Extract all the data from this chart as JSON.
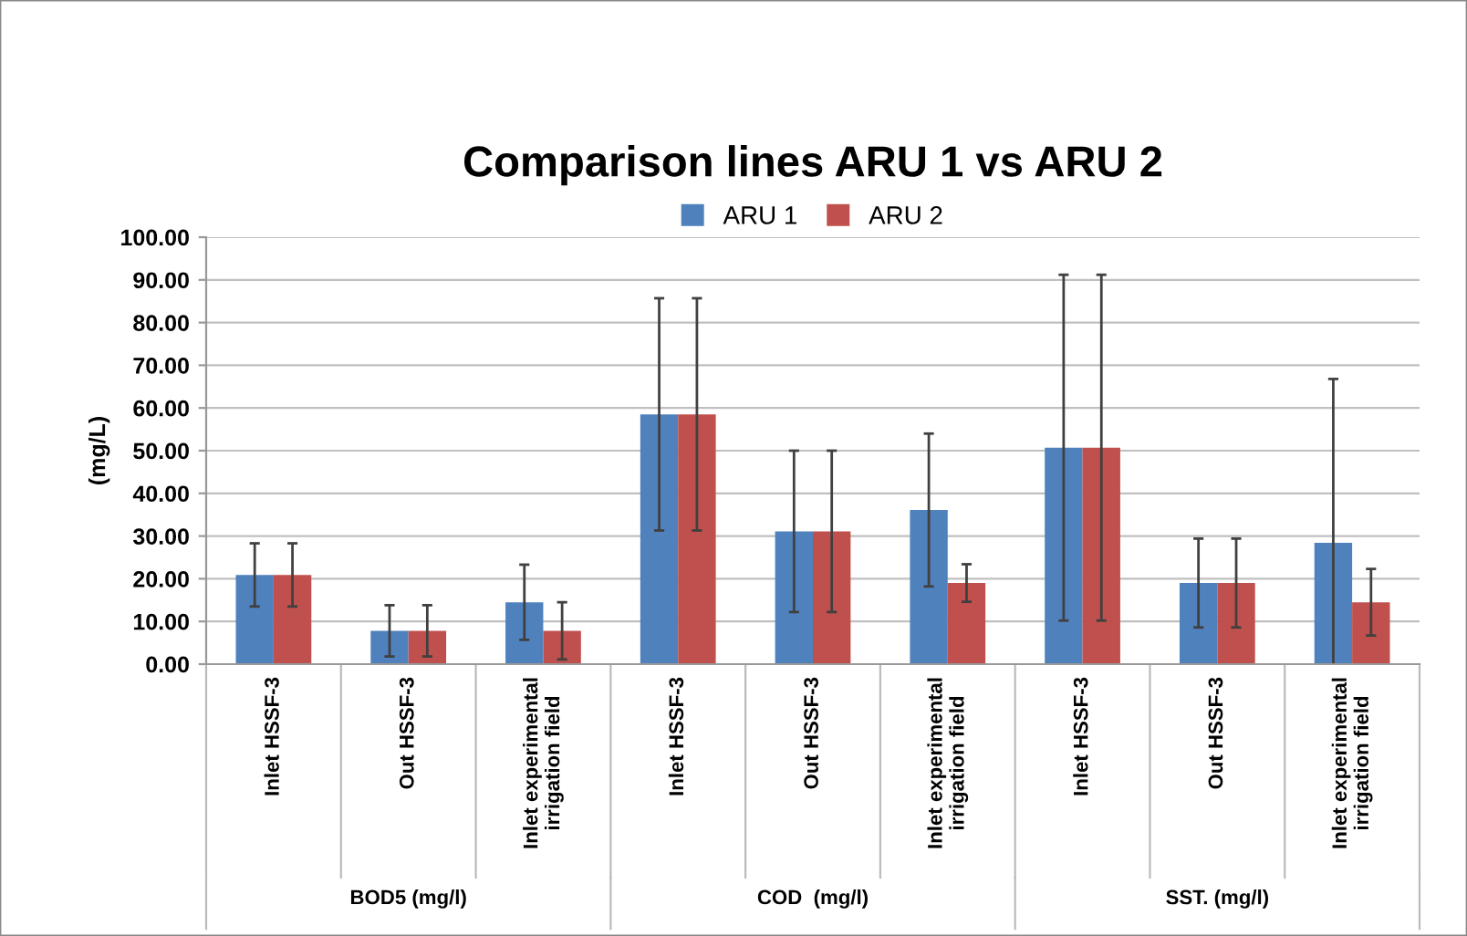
{
  "chart_data": {
    "type": "bar",
    "title": "Comparison lines ARU 1 vs ARU 2",
    "ylabel": "(mg/L)",
    "categories": [
      "Inlet HSSF-3",
      "Out HSSF-3",
      "Inlet experimental irrigation field",
      "Inlet HSSF-3",
      "Out HSSF-3",
      "Inlet experimental irrigation field",
      "Inlet HSSF-3",
      "Out HSSF-3",
      "Inlet experimental irrigation field"
    ],
    "series": [
      {
        "name": "ARU 1",
        "color": "#4f81bd",
        "values": [
          20.9,
          7.8,
          14.5,
          58.5,
          31.1,
          36.1,
          50.7,
          19.0,
          28.4
        ],
        "errors": [
          7.4,
          6.0,
          8.8,
          27.2,
          18.9,
          17.9,
          40.5,
          10.4,
          38.4
        ]
      },
      {
        "name": "ARU 2",
        "color": "#c0504d",
        "values": [
          20.9,
          7.8,
          7.8,
          58.5,
          31.1,
          19.0,
          50.7,
          19.0,
          14.5
        ],
        "errors": [
          7.4,
          6.0,
          6.7,
          27.2,
          18.9,
          4.4,
          40.5,
          10.4,
          7.8
        ]
      }
    ],
    "annotations": [
      "BOD5 (mg/l)",
      "COD  (mg/l)",
      "SST. (mg/l)"
    ],
    "ylim": [
      0,
      100
    ],
    "yticks": [
      {
        "value": 0,
        "label": "0.00"
      },
      {
        "value": 10,
        "label": "10.00"
      },
      {
        "value": 20,
        "label": "20.00"
      },
      {
        "value": 30,
        "label": "30.00"
      },
      {
        "value": 40,
        "label": "40.00"
      },
      {
        "value": 50,
        "label": "50.00"
      },
      {
        "value": 60,
        "label": "60.00"
      },
      {
        "value": 70,
        "label": "70.00"
      },
      {
        "value": 80,
        "label": "80.00"
      },
      {
        "value": 90,
        "label": "90.00"
      },
      {
        "value": 100,
        "label": "100.00"
      }
    ],
    "grid": "y",
    "legend": "top"
  }
}
